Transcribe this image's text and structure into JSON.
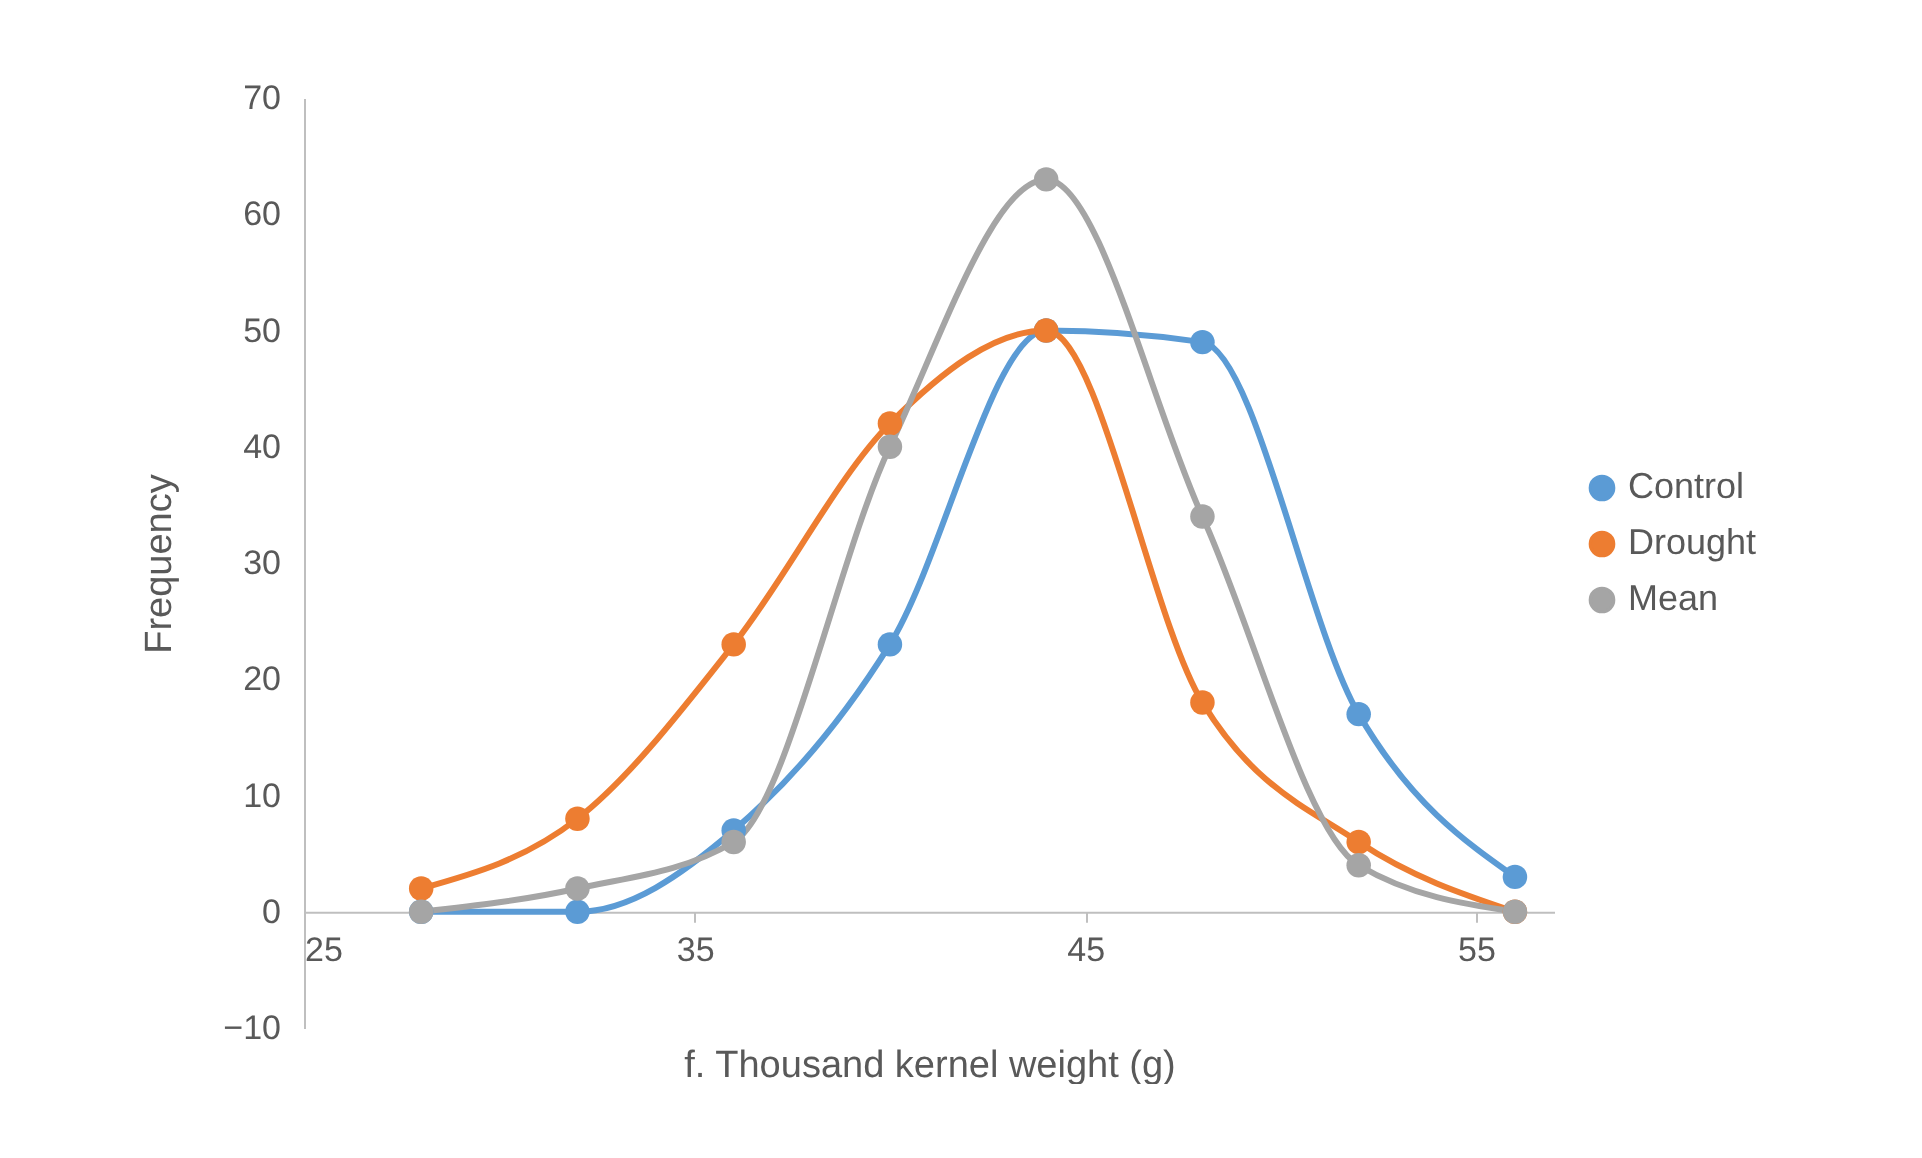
{
  "chart_data": {
    "type": "line",
    "xlabel": "f. Thousand kernel weight (g)",
    "ylabel": "Frequency",
    "x": [
      28,
      32,
      36,
      40,
      44,
      48,
      52,
      56
    ],
    "series": [
      {
        "name": "Control",
        "color": "#5b9bd5",
        "values": [
          0,
          0,
          7,
          23,
          50,
          49,
          17,
          3
        ]
      },
      {
        "name": "Drought",
        "color": "#ed7d31",
        "values": [
          2,
          8,
          23,
          42,
          50,
          18,
          6,
          0
        ]
      },
      {
        "name": "Mean",
        "color": "#a5a5a5",
        "values": [
          0,
          2,
          6,
          40,
          63,
          34,
          4,
          0
        ]
      }
    ],
    "xlim": [
      25,
      57
    ],
    "xticks": [
      25,
      35,
      45,
      55
    ],
    "ylim": [
      -10,
      70
    ],
    "yticks": [
      -10,
      0,
      10,
      20,
      30,
      40,
      50,
      60,
      70
    ],
    "grid": false,
    "legend": "right",
    "marker": "circle",
    "line_style": "solid"
  }
}
